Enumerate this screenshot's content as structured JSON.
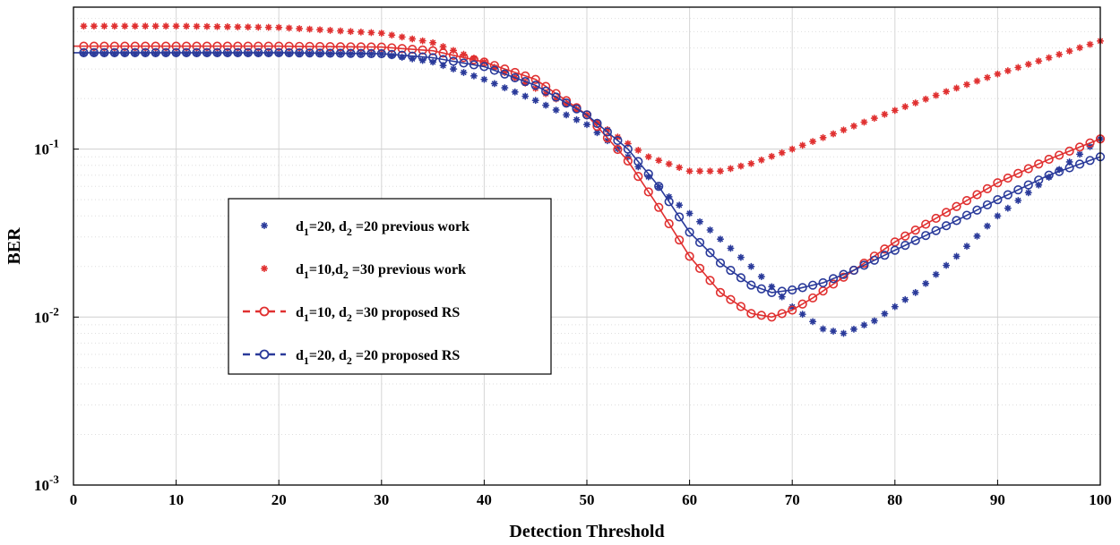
{
  "chart_data": {
    "type": "line",
    "title": "",
    "xlabel": "Detection Threshold",
    "ylabel": "BER",
    "xlim": [
      0,
      100
    ],
    "ylim": [
      0.001,
      0.7
    ],
    "yscale": "log",
    "grid": true,
    "x_ticks": [
      0,
      10,
      20,
      30,
      40,
      50,
      60,
      70,
      80,
      90,
      100
    ],
    "y_ticks": [
      {
        "value": 0.001,
        "base": "10",
        "exp": "-3"
      },
      {
        "value": 0.01,
        "base": "10",
        "exp": "-2"
      },
      {
        "value": 0.1,
        "base": "10",
        "exp": "-1"
      }
    ],
    "legend_position": "center-left",
    "series": [
      {
        "name": "d1=20, d2 =20 previous work",
        "legend": {
          "d": "d",
          "s1": "1",
          "mid": "=20, d",
          "s2": "2",
          "tail": " =20 previous work"
        },
        "color": "#2a3a9a",
        "marker": "star",
        "line": false,
        "points": [
          [
            0,
            0.37
          ],
          [
            10,
            0.37
          ],
          [
            20,
            0.37
          ],
          [
            30,
            0.368
          ],
          [
            35,
            0.33
          ],
          [
            40,
            0.26
          ],
          [
            45,
            0.195
          ],
          [
            50,
            0.14
          ],
          [
            54,
            0.09
          ],
          [
            58,
            0.052
          ],
          [
            62,
            0.033
          ],
          [
            66,
            0.02
          ],
          [
            70,
            0.0115
          ],
          [
            73,
            0.0085
          ],
          [
            75,
            0.008
          ],
          [
            78,
            0.0095
          ],
          [
            82,
            0.014
          ],
          [
            86,
            0.023
          ],
          [
            90,
            0.04
          ],
          [
            95,
            0.068
          ],
          [
            100,
            0.115
          ]
        ]
      },
      {
        "name": "d1=10,d2 =30 previous work",
        "legend": {
          "d": "d",
          "s1": "1",
          "mid": "=10,d",
          "s2": "2",
          "tail": " =30 previous work"
        },
        "color": "#e03030",
        "marker": "star",
        "line": false,
        "points": [
          [
            0,
            0.54
          ],
          [
            10,
            0.54
          ],
          [
            20,
            0.53
          ],
          [
            30,
            0.49
          ],
          [
            35,
            0.43
          ],
          [
            40,
            0.33
          ],
          [
            45,
            0.23
          ],
          [
            50,
            0.16
          ],
          [
            53,
            0.118
          ],
          [
            56,
            0.09
          ],
          [
            60,
            0.074
          ],
          [
            63,
            0.074
          ],
          [
            66,
            0.082
          ],
          [
            70,
            0.1
          ],
          [
            75,
            0.13
          ],
          [
            80,
            0.17
          ],
          [
            85,
            0.22
          ],
          [
            90,
            0.28
          ],
          [
            95,
            0.35
          ],
          [
            100,
            0.44
          ]
        ]
      },
      {
        "name": "d1=10, d2 =30 proposed RS",
        "legend": {
          "d": "d",
          "s1": "1",
          "mid": "=10,  d",
          "s2": "2",
          "tail": " =30  proposed RS"
        },
        "color": "#e03030",
        "marker": "circle",
        "line": true,
        "points": [
          [
            0,
            0.41
          ],
          [
            10,
            0.41
          ],
          [
            20,
            0.41
          ],
          [
            30,
            0.405
          ],
          [
            35,
            0.385
          ],
          [
            40,
            0.33
          ],
          [
            45,
            0.26
          ],
          [
            50,
            0.16
          ],
          [
            54,
            0.085
          ],
          [
            57,
            0.045
          ],
          [
            60,
            0.023
          ],
          [
            63,
            0.014
          ],
          [
            66,
            0.0105
          ],
          [
            68,
            0.01
          ],
          [
            70,
            0.011
          ],
          [
            72,
            0.013
          ],
          [
            76,
            0.019
          ],
          [
            80,
            0.028
          ],
          [
            85,
            0.042
          ],
          [
            90,
            0.063
          ],
          [
            95,
            0.087
          ],
          [
            100,
            0.115
          ]
        ]
      },
      {
        "name": "d1=20, d2 =20 proposed RS",
        "legend": {
          "d": "d",
          "s1": "1",
          "mid": "=20, d",
          "s2": "2",
          "tail": " =20 proposed RS"
        },
        "color": "#2a3a9a",
        "marker": "circle",
        "line": true,
        "points": [
          [
            0,
            0.375
          ],
          [
            10,
            0.375
          ],
          [
            20,
            0.375
          ],
          [
            30,
            0.37
          ],
          [
            35,
            0.35
          ],
          [
            40,
            0.31
          ],
          [
            45,
            0.24
          ],
          [
            50,
            0.16
          ],
          [
            54,
            0.1
          ],
          [
            57,
            0.06
          ],
          [
            60,
            0.032
          ],
          [
            63,
            0.021
          ],
          [
            66,
            0.0155
          ],
          [
            68,
            0.014
          ],
          [
            70,
            0.0145
          ],
          [
            73,
            0.016
          ],
          [
            76,
            0.019
          ],
          [
            80,
            0.025
          ],
          [
            85,
            0.035
          ],
          [
            90,
            0.05
          ],
          [
            95,
            0.07
          ],
          [
            100,
            0.09
          ]
        ]
      }
    ]
  }
}
